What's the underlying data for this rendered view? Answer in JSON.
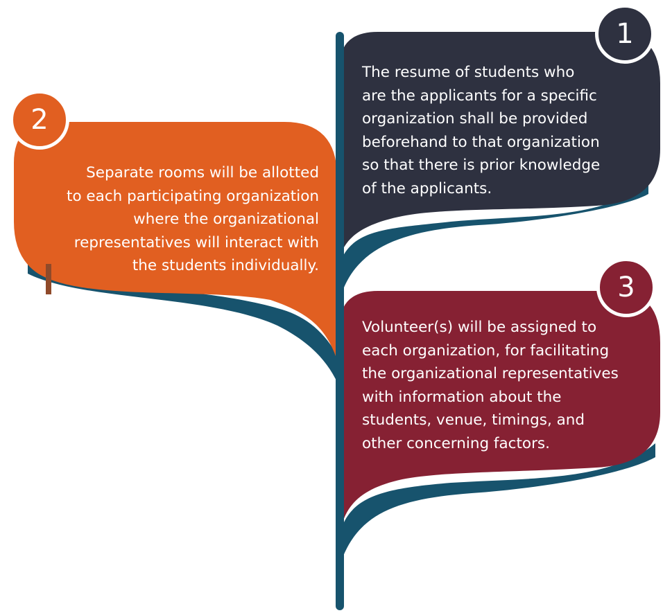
{
  "colors": {
    "stem": "#17536d",
    "step1": "#2e3140",
    "step2": "#e15f21",
    "step3": "#862133",
    "text": "#ffffff"
  },
  "steps": [
    {
      "number": "1",
      "lines": [
        "The resume of students who",
        "are the applicants for a specific",
        "organization shall be provided",
        "beforehand to that organization",
        "so that there is prior knowledge",
        "of the applicants."
      ]
    },
    {
      "number": "2",
      "lines": [
        "Separate rooms will be allotted",
        "to each participating organization",
        "where the organizational",
        "representatives will interact with",
        "the students individually."
      ]
    },
    {
      "number": "3",
      "lines": [
        "Volunteer(s) will be assigned to",
        "each organization, for facilitating",
        "the organizational representatives",
        "with information about the",
        "students, venue, timings, and",
        "other concerning factors."
      ]
    }
  ]
}
